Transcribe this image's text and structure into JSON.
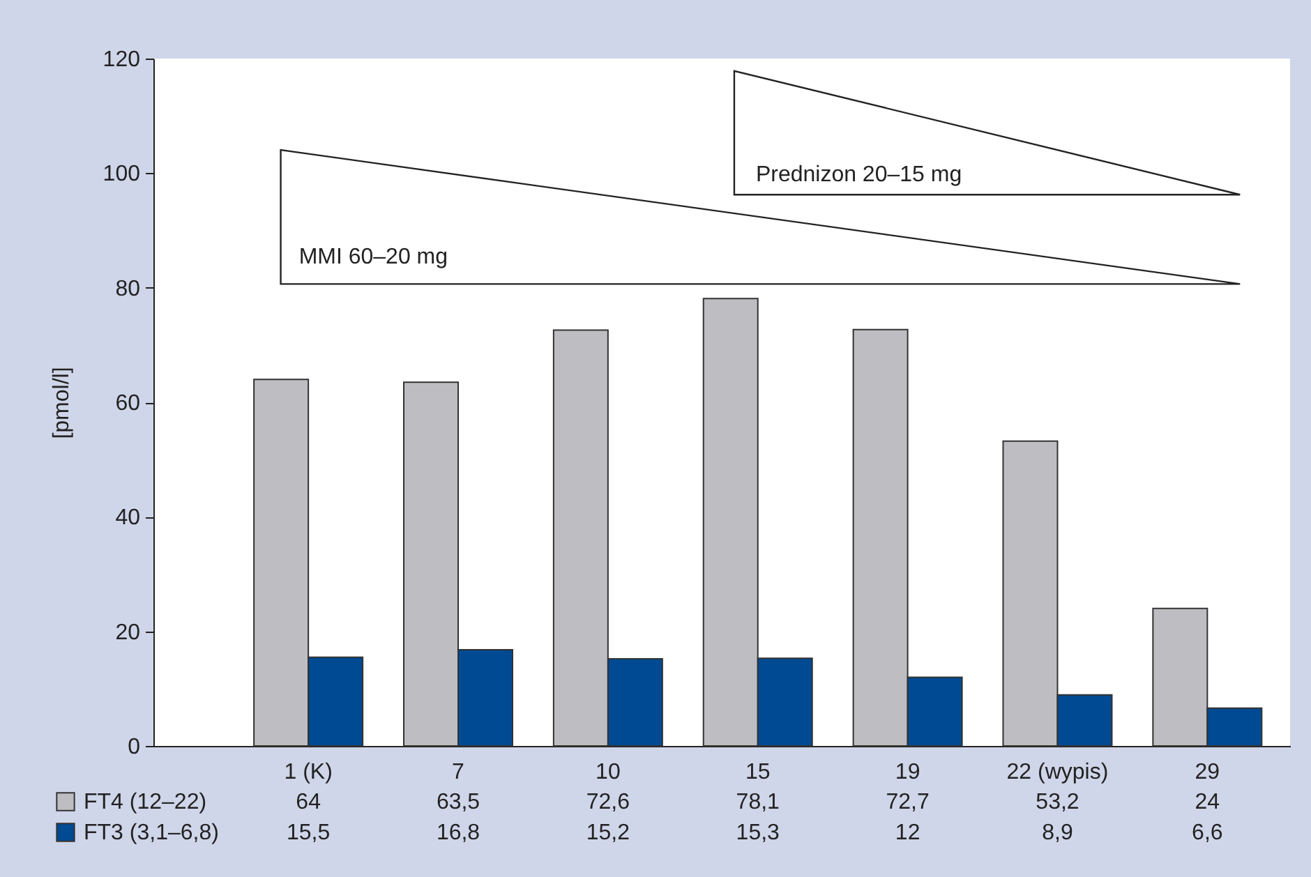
{
  "chart_data": {
    "type": "bar",
    "categories": [
      "1 (K)",
      "7",
      "10",
      "15",
      "19",
      "22 (wypis)",
      "29"
    ],
    "series": [
      {
        "name": "FT4 (12–22)",
        "color": "#bebec2",
        "values": [
          64,
          63.5,
          72.6,
          78.1,
          72.7,
          53.2,
          24
        ],
        "value_labels": [
          "64",
          "63,5",
          "72,6",
          "78,1",
          "72,7",
          "53,2",
          "24"
        ]
      },
      {
        "name": "FT3 (3,1–6,8)",
        "color": "#004a93",
        "values": [
          15.5,
          16.8,
          15.2,
          15.3,
          12,
          8.9,
          6.6
        ],
        "value_labels": [
          "15,5",
          "16,8",
          "15,2",
          "15,3",
          "12",
          "8,9",
          "6,6"
        ]
      }
    ],
    "ylabel": "[pmol/l]",
    "legend": "bottom left",
    "ylim": [
      0,
      120
    ],
    "yticks": [
      0,
      20,
      40,
      60,
      80,
      100,
      120
    ],
    "annotations": [
      "Prednizon 20–15 mg",
      "MMI 60–20 mg"
    ]
  }
}
